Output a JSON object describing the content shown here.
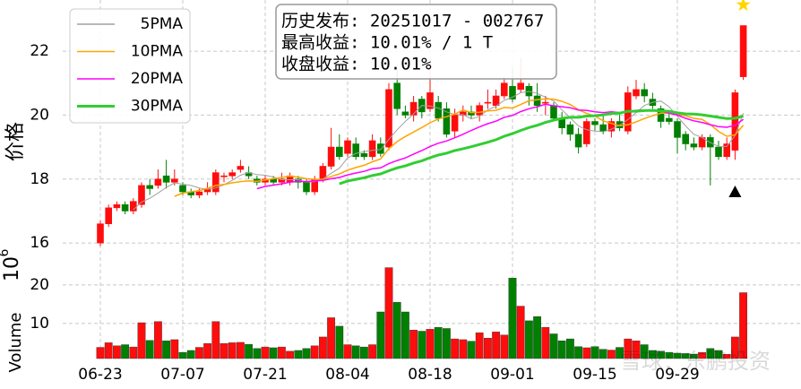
{
  "chart_data": {
    "type": "candlestick",
    "annotation": [
      "历史发布: 20251017 - 002767",
      "最高收益: 10.01% / 1 T",
      "收盘收益: 10.01%"
    ],
    "ylabel": "价格",
    "watermark": "雪球：东鹏投资",
    "categories": [
      "06-23",
      null,
      null,
      null,
      null,
      null,
      null,
      null,
      null,
      null,
      "07-07",
      null,
      null,
      null,
      null,
      null,
      null,
      null,
      null,
      null,
      "07-21",
      null,
      null,
      null,
      null,
      null,
      null,
      null,
      null,
      null,
      "08-04",
      null,
      null,
      null,
      null,
      null,
      null,
      null,
      null,
      null,
      "08-18",
      null,
      null,
      null,
      null,
      null,
      null,
      null,
      null,
      null,
      "09-01",
      null,
      null,
      null,
      null,
      null,
      null,
      null,
      null,
      null,
      "09-15",
      null,
      null,
      null,
      null,
      null,
      null,
      null,
      null,
      null,
      "09-29",
      null,
      null,
      null,
      null,
      null,
      null,
      null,
      null
    ],
    "open": [
      16.0,
      16.6,
      17.1,
      17.2,
      17.0,
      17.2,
      17.8,
      17.8,
      18.1,
      17.9,
      17.8,
      17.6,
      17.5,
      17.6,
      17.6,
      18.1,
      18.1,
      18.3,
      18.2,
      18.0,
      17.9,
      18.0,
      17.9,
      17.9,
      18.0,
      17.9,
      17.6,
      18.0,
      18.4,
      19.0,
      18.8,
      19.1,
      18.8,
      18.7,
      19.1,
      19.0,
      21.0,
      20.1,
      20.0,
      20.5,
      20.2,
      20.4,
      20.2,
      19.5,
      20.0,
      20.1,
      20.0,
      20.4,
      20.3,
      20.6,
      20.9,
      20.8,
      20.9,
      20.6,
      20.4,
      20.3,
      19.9,
      19.7,
      19.4,
      19.1,
      19.8,
      19.7,
      19.5,
      19.8,
      19.5,
      20.6,
      20.8,
      20.5,
      20.2,
      19.9,
      19.8,
      19.4,
      19.1,
      19.0,
      19.3,
      19.0,
      18.7,
      18.9,
      21.2
    ],
    "high": [
      16.7,
      17.2,
      17.3,
      17.3,
      17.4,
      17.9,
      18.0,
      18.3,
      18.6,
      18.3,
      17.9,
      17.7,
      17.7,
      17.9,
      18.3,
      18.2,
      18.3,
      18.6,
      18.4,
      18.1,
      18.1,
      18.1,
      18.2,
      18.2,
      18.1,
      18.0,
      18.1,
      18.5,
      19.6,
      19.4,
      19.3,
      19.3,
      18.9,
      19.4,
      19.3,
      21.0,
      21.4,
      20.3,
      20.6,
      20.6,
      21.8,
      20.6,
      20.4,
      20.2,
      20.3,
      20.3,
      20.4,
      20.8,
      20.8,
      21.2,
      21.5,
      21.8,
      21.0,
      21.0,
      20.6,
      20.4,
      20.1,
      19.8,
      19.6,
      19.9,
      19.9,
      20.0,
      19.9,
      20.1,
      20.9,
      21.1,
      21.0,
      20.7,
      20.3,
      20.1,
      19.9,
      19.5,
      19.3,
      19.4,
      19.4,
      19.2,
      19.3,
      20.8,
      22.8
    ],
    "low": [
      15.9,
      16.5,
      17.0,
      16.9,
      16.9,
      17.1,
      17.5,
      17.7,
      17.7,
      17.8,
      17.5,
      17.4,
      17.4,
      17.5,
      17.5,
      17.9,
      18.0,
      18.2,
      18.0,
      17.8,
      17.8,
      17.8,
      17.8,
      17.8,
      17.7,
      17.5,
      17.5,
      17.9,
      18.3,
      18.6,
      18.7,
      18.6,
      18.6,
      18.6,
      18.7,
      18.9,
      20.0,
      19.9,
      19.8,
      19.9,
      20.1,
      19.8,
      19.3,
      19.3,
      19.8,
      19.9,
      19.8,
      20.2,
      20.2,
      20.5,
      20.4,
      20.7,
      20.3,
      20.1,
      20.0,
      19.8,
      19.4,
      19.2,
      18.8,
      19.0,
      19.5,
      19.4,
      19.3,
      19.5,
      19.4,
      20.5,
      20.4,
      20.2,
      19.6,
      19.7,
      18.8,
      18.9,
      18.9,
      18.9,
      17.8,
      18.6,
      18.6,
      18.6,
      21.1
    ],
    "close": [
      16.6,
      17.1,
      17.2,
      17.0,
      17.3,
      17.8,
      17.7,
      18.0,
      17.9,
      18.0,
      17.6,
      17.5,
      17.6,
      17.7,
      18.2,
      18.1,
      18.2,
      18.4,
      18.1,
      17.9,
      18.0,
      17.9,
      18.0,
      18.1,
      17.9,
      17.6,
      18.0,
      18.4,
      19.0,
      18.7,
      19.2,
      18.7,
      18.7,
      19.2,
      18.8,
      20.8,
      20.2,
      20.0,
      20.4,
      20.1,
      20.7,
      19.9,
      19.4,
      20.0,
      20.1,
      20.0,
      20.3,
      20.4,
      20.6,
      21.0,
      20.5,
      21.0,
      20.6,
      20.3,
      20.4,
      19.9,
      19.6,
      19.4,
      19.0,
      19.8,
      19.7,
      19.5,
      19.8,
      19.6,
      20.7,
      20.8,
      20.6,
      20.3,
      19.8,
      19.8,
      19.3,
      19.1,
      19.0,
      19.3,
      19.0,
      18.7,
      19.1,
      20.7,
      22.8
    ],
    "up_color": "#ff0d0d",
    "down_color": "#008000",
    "series": [
      {
        "name": "5PMA",
        "color": "#a0a0a0",
        "values": [
          null,
          null,
          null,
          null,
          17.04,
          17.28,
          17.4,
          17.56,
          17.74,
          17.88,
          17.84,
          17.8,
          17.72,
          17.68,
          17.72,
          17.82,
          17.96,
          18.12,
          18.2,
          18.14,
          18.12,
          18.06,
          17.98,
          17.98,
          17.98,
          17.9,
          17.92,
          18.0,
          18.18,
          18.34,
          18.66,
          18.8,
          18.86,
          18.9,
          18.92,
          19.24,
          19.54,
          19.8,
          20.04,
          20.3,
          20.28,
          20.22,
          20.1,
          20.02,
          20.02,
          19.88,
          19.96,
          20.16,
          20.28,
          20.46,
          20.56,
          20.7,
          20.74,
          20.68,
          20.56,
          20.44,
          20.16,
          19.92,
          19.66,
          19.54,
          19.5,
          19.48,
          19.56,
          19.68,
          19.86,
          20.08,
          20.3,
          20.4,
          20.44,
          20.26,
          19.96,
          19.66,
          19.4,
          19.3,
          19.14,
          19.02,
          19.02,
          19.36,
          20.06
        ]
      },
      {
        "name": "10PMA",
        "color": "#ffa500",
        "values": [
          null,
          null,
          null,
          null,
          null,
          null,
          null,
          null,
          null,
          17.46,
          17.56,
          17.6,
          17.64,
          17.71,
          17.8,
          17.83,
          17.88,
          17.92,
          17.94,
          17.93,
          17.97,
          18.01,
          18.05,
          18.09,
          18.06,
          18.01,
          17.99,
          17.99,
          18.08,
          18.16,
          18.28,
          18.36,
          18.43,
          18.54,
          18.63,
          18.95,
          19.17,
          19.33,
          19.47,
          19.61,
          19.76,
          19.88,
          19.95,
          20.03,
          20.16,
          20.08,
          20.09,
          20.13,
          20.15,
          20.24,
          20.22,
          20.33,
          20.45,
          20.48,
          20.51,
          20.5,
          20.43,
          20.33,
          20.17,
          20.05,
          19.97,
          19.82,
          19.74,
          19.67,
          19.7,
          19.79,
          19.89,
          19.98,
          20.06,
          20.06,
          20.02,
          19.98,
          19.9,
          19.87,
          19.7,
          19.49,
          19.34,
          19.38,
          19.68
        ]
      },
      {
        "name": "20PMA",
        "color": "#ff00ff",
        "values": [
          null,
          null,
          null,
          null,
          null,
          null,
          null,
          null,
          null,
          null,
          null,
          null,
          null,
          null,
          null,
          null,
          null,
          null,
          null,
          17.7,
          17.77,
          17.81,
          17.85,
          17.9,
          17.93,
          17.92,
          17.94,
          17.96,
          18.01,
          18.05,
          18.13,
          18.19,
          18.24,
          18.32,
          18.35,
          18.48,
          18.58,
          18.66,
          18.78,
          18.89,
          19.02,
          19.12,
          19.19,
          19.29,
          19.4,
          19.52,
          19.63,
          19.73,
          19.81,
          19.93,
          19.99,
          20.11,
          20.2,
          20.26,
          20.34,
          20.29,
          20.26,
          20.23,
          20.16,
          20.15,
          20.1,
          20.08,
          20.1,
          20.08,
          20.11,
          20.15,
          20.16,
          20.16,
          20.12,
          20.06,
          20.0,
          19.9,
          19.82,
          19.77,
          19.7,
          19.64,
          19.62,
          19.68,
          19.87
        ]
      },
      {
        "name": "30PMA",
        "color": "#32cd32",
        "values": [
          null,
          null,
          null,
          null,
          null,
          null,
          null,
          null,
          null,
          null,
          null,
          null,
          null,
          null,
          null,
          null,
          null,
          null,
          null,
          null,
          null,
          null,
          null,
          null,
          null,
          null,
          null,
          null,
          null,
          17.85,
          17.94,
          17.99,
          18.04,
          18.11,
          18.16,
          18.26,
          18.35,
          18.41,
          18.5,
          18.57,
          18.67,
          18.75,
          18.81,
          18.89,
          18.95,
          19.01,
          19.08,
          19.15,
          19.23,
          19.34,
          19.42,
          19.52,
          19.61,
          19.68,
          19.77,
          19.84,
          19.9,
          19.93,
          19.93,
          19.97,
          19.98,
          20.01,
          20.05,
          20.06,
          20.12,
          20.12,
          20.14,
          20.15,
          20.13,
          20.12,
          20.07,
          20.04,
          20.03,
          20.01,
          19.97,
          19.93,
          19.89,
          19.9,
          19.97
        ]
      }
    ],
    "markers": [
      {
        "index": 77,
        "value": 17.6,
        "color": "#000000",
        "symbol": "triangle"
      },
      {
        "index": 78,
        "value": 23.45,
        "color": "#ffd700",
        "symbol": "star"
      }
    ],
    "ylim": [
      15.47,
      23.6
    ],
    "yticks": [
      16,
      18,
      20,
      22
    ],
    "grid": true,
    "volume": {
      "ylabel": "Volume",
      "offset": {
        "base": "10",
        "exponent": "6"
      },
      "values": [
        3.8,
        5.0,
        4.2,
        4.5,
        3.9,
        10.2,
        5.6,
        10.5,
        5.5,
        5.8,
        2.5,
        3.0,
        3.8,
        4.8,
        10.5,
        4.8,
        5.0,
        5.1,
        4.6,
        3.5,
        3.9,
        3.7,
        3.9,
        2.8,
        3.0,
        3.5,
        4.2,
        6.5,
        11.5,
        9.3,
        4.5,
        4.2,
        3.9,
        4.5,
        13.0,
        24.5,
        15.5,
        13.0,
        8.3,
        8.0,
        8.5,
        9.0,
        8.7,
        6.0,
        5.8,
        5.4,
        7.6,
        6.2,
        7.8,
        7.0,
        21.8,
        14.5,
        10.7,
        11.8,
        9.0,
        7.3,
        5.5,
        6.0,
        4.0,
        3.7,
        4.0,
        3.3,
        3.1,
        3.8,
        6.0,
        5.5,
        4.5,
        3.0,
        2.8,
        2.5,
        2.3,
        2.2,
        2.0,
        2.5,
        3.5,
        3.0,
        2.0,
        6.5,
        18.0
      ],
      "ylim": [
        0.9,
        25.1
      ],
      "yticks": [
        10,
        20
      ]
    }
  }
}
